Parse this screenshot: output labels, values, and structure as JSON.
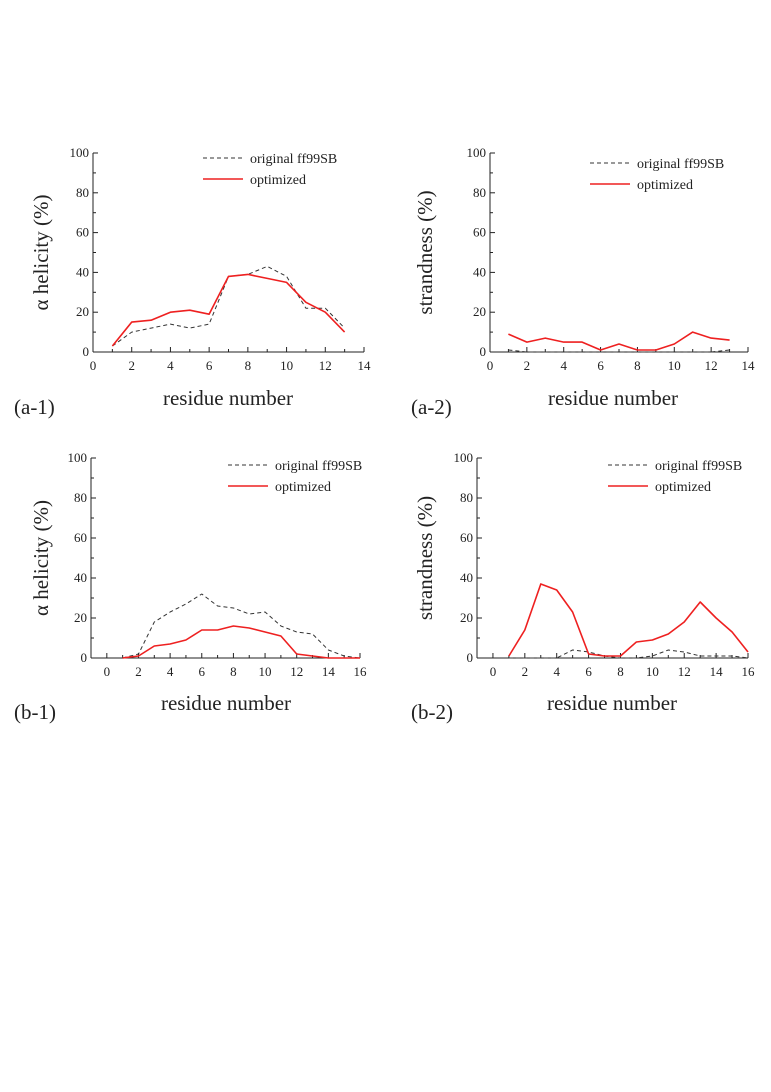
{
  "chart_data": [
    {
      "id": "a1",
      "type": "line",
      "panel_label": "(a-1)",
      "xlabel": "residue number",
      "ylabel": "α helicity (%)",
      "xlim": [
        0,
        14
      ],
      "ylim": [
        0,
        100
      ],
      "xticks": [
        "0",
        "2",
        "4",
        "6",
        "8",
        "10",
        "12",
        "14"
      ],
      "yticks": [
        "0",
        "20",
        "40",
        "60",
        "80",
        "100"
      ],
      "legend_position": "top-right",
      "series": [
        {
          "name": "original ff99SB",
          "style": "dashed",
          "color": "#333333",
          "x": [
            1,
            2,
            3,
            4,
            5,
            6,
            7,
            8,
            9,
            10,
            11,
            12,
            13
          ],
          "values": [
            3,
            10,
            12,
            14,
            12,
            14,
            38,
            39,
            43,
            38,
            22,
            22,
            12
          ]
        },
        {
          "name": "optimized",
          "style": "solid",
          "color": "#ee2020",
          "x": [
            1,
            2,
            3,
            4,
            5,
            6,
            7,
            8,
            9,
            10,
            11,
            12,
            13
          ],
          "values": [
            3,
            15,
            16,
            20,
            21,
            19,
            38,
            39,
            37,
            35,
            25,
            20,
            10
          ]
        }
      ]
    },
    {
      "id": "a2",
      "type": "line",
      "panel_label": "(a-2)",
      "xlabel": "residue number",
      "ylabel": "strandness (%)",
      "xlim": [
        0,
        14
      ],
      "ylim": [
        0,
        100
      ],
      "xticks": [
        "0",
        "2",
        "4",
        "6",
        "8",
        "10",
        "12",
        "14"
      ],
      "yticks": [
        "0",
        "20",
        "40",
        "60",
        "80",
        "100"
      ],
      "legend_position": "top-right",
      "series": [
        {
          "name": "original ff99SB",
          "style": "dashed",
          "color": "#333333",
          "x": [
            1,
            2,
            3,
            4,
            5,
            6,
            7,
            8,
            9,
            10,
            11,
            12,
            13
          ],
          "values": [
            1,
            0,
            0,
            0,
            0,
            0,
            0,
            0,
            0,
            0,
            0,
            0,
            1
          ]
        },
        {
          "name": "optimized",
          "style": "solid",
          "color": "#ee2020",
          "x": [
            1,
            2,
            3,
            4,
            5,
            6,
            7,
            8,
            9,
            10,
            11,
            12,
            13
          ],
          "values": [
            9,
            5,
            7,
            5,
            5,
            1,
            4,
            1,
            1,
            4,
            10,
            7,
            6
          ]
        }
      ]
    },
    {
      "id": "b1",
      "type": "line",
      "panel_label": "(b-1)",
      "xlabel": "residue number",
      "ylabel": "α helicity (%)",
      "xlim": [
        -1,
        16
      ],
      "ylim": [
        0,
        100
      ],
      "xticks": [
        "0",
        "2",
        "4",
        "6",
        "8",
        "10",
        "12",
        "14",
        "16"
      ],
      "yticks": [
        "0",
        "20",
        "40",
        "60",
        "80",
        "100"
      ],
      "legend_position": "top-right",
      "series": [
        {
          "name": "original ff99SB",
          "style": "dashed",
          "color": "#333333",
          "x": [
            1,
            2,
            3,
            4,
            5,
            6,
            7,
            8,
            9,
            10,
            11,
            12,
            13,
            14,
            15,
            16
          ],
          "values": [
            0,
            2,
            18,
            23,
            27,
            32,
            26,
            25,
            22,
            23,
            16,
            13,
            12,
            4,
            1,
            0
          ]
        },
        {
          "name": "optimized",
          "style": "solid",
          "color": "#ee2020",
          "x": [
            1,
            2,
            3,
            4,
            5,
            6,
            7,
            8,
            9,
            10,
            11,
            12,
            13,
            14,
            15,
            16
          ],
          "values": [
            0,
            1,
            6,
            7,
            9,
            14,
            14,
            16,
            15,
            13,
            11,
            2,
            1,
            0,
            0,
            0
          ]
        }
      ]
    },
    {
      "id": "b2",
      "type": "line",
      "panel_label": "(b-2)",
      "xlabel": "residue number",
      "ylabel": "strandness (%)",
      "xlim": [
        -1,
        16
      ],
      "ylim": [
        0,
        100
      ],
      "xticks": [
        "0",
        "2",
        "4",
        "6",
        "8",
        "10",
        "12",
        "14",
        "16"
      ],
      "yticks": [
        "0",
        "20",
        "40",
        "60",
        "80",
        "100"
      ],
      "legend_position": "top-right",
      "series": [
        {
          "name": "original ff99SB",
          "style": "dashed",
          "color": "#333333",
          "x": [
            1,
            2,
            3,
            4,
            5,
            6,
            7,
            8,
            9,
            10,
            11,
            12,
            13,
            14,
            15,
            16
          ],
          "values": [
            0,
            0,
            0,
            0,
            4,
            3,
            1,
            0,
            0,
            1,
            4,
            3,
            1,
            1,
            1,
            0
          ]
        },
        {
          "name": "optimized",
          "style": "solid",
          "color": "#ee2020",
          "x": [
            1,
            2,
            3,
            4,
            5,
            6,
            7,
            8,
            9,
            10,
            11,
            12,
            13,
            14,
            15,
            16
          ],
          "values": [
            1,
            14,
            37,
            34,
            23,
            2,
            1,
            1,
            8,
            9,
            12,
            18,
            28,
            20,
            13,
            3
          ]
        }
      ]
    }
  ]
}
